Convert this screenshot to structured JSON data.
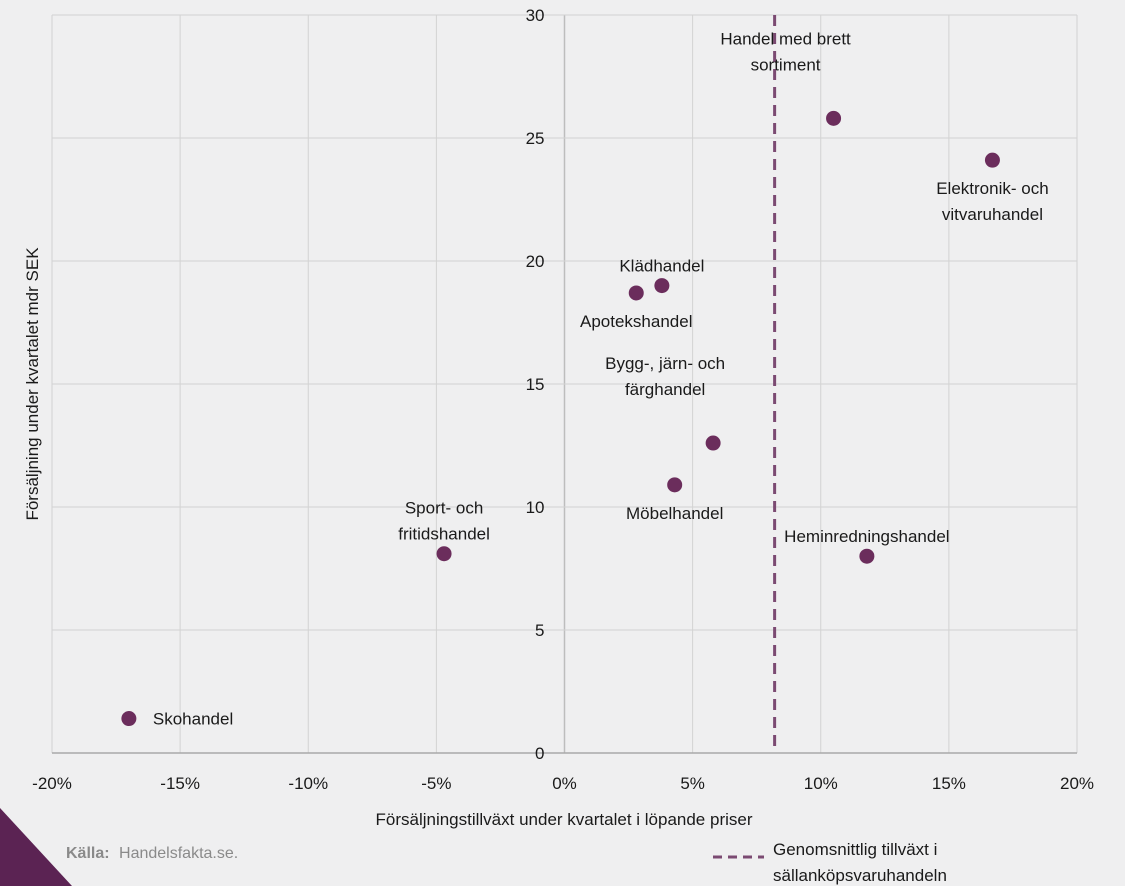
{
  "chart_data": {
    "type": "scatter",
    "xlabel": "Försäljningstillväxt under kvartalet i löpande priser",
    "ylabel": "Försäljning under kvartalet mdr SEK",
    "xlim": [
      -0.2,
      0.2
    ],
    "ylim": [
      0,
      30
    ],
    "x_ticks": [
      -0.2,
      -0.15,
      -0.1,
      -0.05,
      0.0,
      0.05,
      0.1,
      0.15,
      0.2
    ],
    "x_tick_labels": [
      "-20%",
      "-15%",
      "-10%",
      "-5%",
      "0%",
      "5%",
      "10%",
      "15%",
      "20%"
    ],
    "y_ticks": [
      0,
      5,
      10,
      15,
      20,
      25,
      30
    ],
    "y_tick_labels": [
      "0",
      "5",
      "10",
      "15",
      "20",
      "25",
      "30"
    ],
    "grid": true,
    "marker_color": "#6b2d5c",
    "points": [
      {
        "label": "Handel med brett sortiment",
        "lines": [
          "Handel med brett",
          "sortiment"
        ],
        "x": 0.105,
        "y": 25.8,
        "label_pos": "above-left"
      },
      {
        "label": "Elektronik- och vitvaruhandel",
        "lines": [
          "Elektronik- och",
          "vitvaruhandel"
        ],
        "x": 0.167,
        "y": 24.1,
        "label_pos": "below"
      },
      {
        "label": "Klädhandel",
        "lines": [
          "Klädhandel"
        ],
        "x": 0.038,
        "y": 19.0,
        "label_pos": "above"
      },
      {
        "label": "Apotekshandel",
        "lines": [
          "Apotekshandel"
        ],
        "x": 0.028,
        "y": 18.7,
        "label_pos": "below"
      },
      {
        "label": "Bygg-, järn- och färghandel",
        "lines": [
          "Bygg-, järn- och",
          "färghandel"
        ],
        "x": 0.058,
        "y": 12.6,
        "label_pos": "above-left"
      },
      {
        "label": "Möbelhandel",
        "lines": [
          "Möbelhandel"
        ],
        "x": 0.043,
        "y": 10.9,
        "label_pos": "below"
      },
      {
        "label": "Sport- och fritidshandel",
        "lines": [
          "Sport- och",
          "fritidshandel"
        ],
        "x": -0.047,
        "y": 8.1,
        "label_pos": "above"
      },
      {
        "label": "Heminredningshandel",
        "lines": [
          "Heminredningshandel"
        ],
        "x": 0.118,
        "y": 8.0,
        "label_pos": "above"
      },
      {
        "label": "Skohandel",
        "lines": [
          "Skohandel"
        ],
        "x": -0.17,
        "y": 1.4,
        "label_pos": "right"
      }
    ],
    "average_line": {
      "x": 0.082,
      "color": "#7b4a72",
      "label": "Genomsnittlig tillväxt i sällanköpsvaruhandeln",
      "label_lines": [
        "Genomsnittlig tillväxt i",
        "sällanköpsvaruhandeln"
      ]
    }
  },
  "source": {
    "key": "Källa:",
    "value": "Handelsfakta.se."
  },
  "decor_color": "#5b2353"
}
